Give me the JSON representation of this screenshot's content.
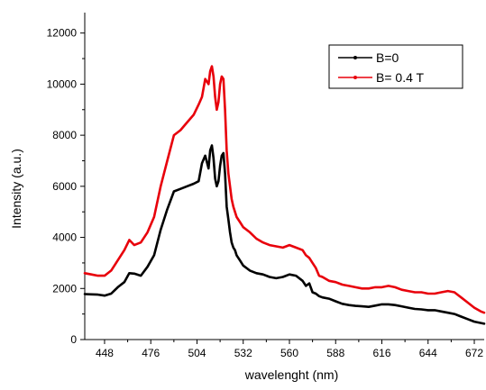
{
  "chart_data": {
    "type": "line",
    "title": "",
    "xlabel": "wavelenght (nm)",
    "ylabel": "Intensity (a.u.)",
    "xlim": [
      436,
      678
    ],
    "ylim": [
      0,
      12800
    ],
    "xticks": [
      448,
      476,
      504,
      532,
      560,
      588,
      616,
      644,
      672
    ],
    "yticks": [
      0,
      2000,
      4000,
      6000,
      8000,
      10000,
      12000
    ],
    "grid": false,
    "legend": "top-right",
    "series": [
      {
        "name": "B=0",
        "color": "#000000",
        "x": [
          436,
          440,
          444,
          448,
          452,
          456,
          460,
          463,
          466,
          470,
          474,
          478,
          482,
          486,
          490,
          494,
          498,
          502,
          505,
          507,
          509,
          511,
          512,
          513,
          514,
          515,
          516,
          517,
          518,
          519,
          520,
          521,
          522,
          523,
          524,
          525,
          526,
          527,
          528,
          530,
          532,
          536,
          540,
          544,
          548,
          552,
          556,
          560,
          564,
          568,
          570,
          572,
          574,
          576,
          578,
          580,
          584,
          588,
          592,
          596,
          600,
          604,
          608,
          612,
          616,
          620,
          624,
          628,
          632,
          636,
          640,
          644,
          648,
          652,
          656,
          660,
          664,
          668,
          672,
          676,
          678
        ],
        "values": [
          1780,
          1770,
          1760,
          1720,
          1800,
          2050,
          2250,
          2600,
          2580,
          2500,
          2850,
          3300,
          4300,
          5100,
          5800,
          5900,
          6000,
          6100,
          6200,
          6900,
          7200,
          6700,
          7400,
          7600,
          7100,
          6300,
          6000,
          6200,
          6800,
          7200,
          7300,
          6500,
          5200,
          4700,
          4200,
          3800,
          3600,
          3500,
          3300,
          3100,
          2900,
          2700,
          2600,
          2550,
          2450,
          2400,
          2450,
          2550,
          2500,
          2300,
          2100,
          2200,
          1850,
          1800,
          1700,
          1650,
          1600,
          1500,
          1400,
          1350,
          1320,
          1300,
          1280,
          1330,
          1380,
          1380,
          1350,
          1300,
          1250,
          1200,
          1180,
          1150,
          1150,
          1100,
          1050,
          1000,
          900,
          800,
          700,
          650,
          620
        ]
      },
      {
        "name": "B= 0.4 T",
        "color": "#e8000b",
        "x": [
          436,
          440,
          444,
          448,
          452,
          456,
          460,
          463,
          466,
          470,
          474,
          478,
          482,
          486,
          490,
          494,
          498,
          502,
          505,
          507,
          509,
          511,
          512,
          513,
          514,
          515,
          516,
          517,
          518,
          519,
          520,
          521,
          522,
          523,
          524,
          525,
          526,
          527,
          528,
          530,
          532,
          536,
          540,
          544,
          548,
          552,
          556,
          560,
          564,
          568,
          570,
          572,
          574,
          576,
          578,
          580,
          584,
          588,
          592,
          596,
          600,
          604,
          608,
          612,
          616,
          620,
          624,
          628,
          632,
          636,
          640,
          644,
          648,
          652,
          656,
          660,
          664,
          668,
          672,
          676,
          678
        ],
        "values": [
          2600,
          2550,
          2500,
          2500,
          2700,
          3100,
          3500,
          3900,
          3700,
          3800,
          4200,
          4800,
          6000,
          7000,
          8000,
          8200,
          8500,
          8800,
          9200,
          9500,
          10200,
          10000,
          10500,
          10700,
          10300,
          9500,
          9000,
          9300,
          10000,
          10300,
          10200,
          9000,
          7400,
          6500,
          6000,
          5500,
          5200,
          5000,
          4800,
          4600,
          4400,
          4200,
          3950,
          3800,
          3700,
          3650,
          3600,
          3700,
          3600,
          3500,
          3300,
          3200,
          3000,
          2800,
          2500,
          2450,
          2300,
          2250,
          2150,
          2100,
          2050,
          2000,
          2000,
          2050,
          2050,
          2100,
          2050,
          1950,
          1900,
          1850,
          1850,
          1800,
          1800,
          1850,
          1900,
          1850,
          1650,
          1450,
          1250,
          1100,
          1050
        ]
      }
    ]
  }
}
